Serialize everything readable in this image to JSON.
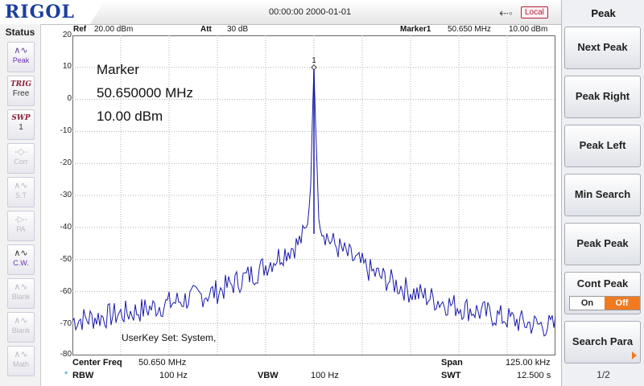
{
  "logo": "RIGOL",
  "datetime": "00:00:00 2000-01-01",
  "local_badge": "Local",
  "status": {
    "title": "Status",
    "items": [
      {
        "label": "Peak",
        "icon": "peak-icon",
        "state": "active"
      },
      {
        "label": "TRIG",
        "sub": "Free",
        "icon": "trig-icon",
        "state": "text"
      },
      {
        "label": "SWP",
        "sub": "1",
        "icon": "sweep-icon",
        "state": "text"
      },
      {
        "label": "Corr",
        "icon": "corr-icon",
        "state": "dim"
      },
      {
        "label": "S.T",
        "icon": "st-icon",
        "state": "dim"
      },
      {
        "label": "PA",
        "icon": "pa-icon",
        "state": "dim"
      },
      {
        "label": "C.W.",
        "icon": "cw-icon",
        "state": "active"
      },
      {
        "label": "Blank",
        "icon": "blank-icon",
        "state": "dim"
      },
      {
        "label": "Blank",
        "icon": "blank-icon",
        "state": "dim"
      },
      {
        "label": "Math",
        "icon": "math-icon",
        "state": "dim"
      }
    ]
  },
  "header": {
    "ref_label": "Ref",
    "ref_value": "20.00 dBm",
    "att_label": "Att",
    "att_value": "30 dB",
    "marker_label": "Marker1",
    "marker_freq": "50.650 MHz",
    "marker_level": "10.00 dBm"
  },
  "marker_box": {
    "title": "Marker",
    "freq": "50.650000 MHz",
    "level": "10.00 dBm"
  },
  "userkey": "UserKey Set:    System,",
  "footer": {
    "center_label": "Center Freq",
    "center_value": "50.650 MHz",
    "span_label": "Span",
    "span_value": "125.00 kHz",
    "rbw_star": "*",
    "rbw_label": "RBW",
    "rbw_value": "100 Hz",
    "vbw_label": "VBW",
    "vbw_value": "100 Hz",
    "swt_label": "SWT",
    "swt_value": "12.500 s"
  },
  "softkeys": {
    "title": "Peak",
    "buttons": [
      "Next Peak",
      "Peak Right",
      "Peak Left",
      "Min Search",
      "Peak Peak"
    ],
    "cont_peak": {
      "label": "Cont Peak",
      "on": "On",
      "off": "Off",
      "selected": "Off"
    },
    "search_para": "Search Para",
    "page": "1/2"
  },
  "chart_data": {
    "type": "line",
    "ylim": [
      -80,
      20
    ],
    "y_ticks": [
      "20",
      "10",
      "0",
      "-10",
      "-20",
      "-30",
      "-40",
      "-50",
      "-60",
      "-70",
      "-80"
    ],
    "x_divisions": 10,
    "y_divisions": 10,
    "grid": true,
    "trace_color": "#1a1aa8",
    "marker": {
      "index": "1",
      "freq_mhz": 50.65,
      "level_dbm": 10.0
    },
    "x_span_khz": 125.0,
    "x_center_mhz": 50.65,
    "trace": {
      "x_khz": [
        -62.5,
        -55,
        -45,
        -35,
        -25,
        -15,
        -8,
        -4,
        -2,
        -1,
        0,
        1,
        2,
        4,
        8,
        15,
        25,
        35,
        45,
        55,
        62.5
      ],
      "y_dbm": [
        -69,
        -68,
        -66,
        -63,
        -60,
        -54,
        -48,
        -45,
        -41,
        -30,
        10,
        -32,
        -40,
        -44,
        -48,
        -54,
        -60,
        -64,
        -67,
        -70,
        -71
      ]
    }
  }
}
